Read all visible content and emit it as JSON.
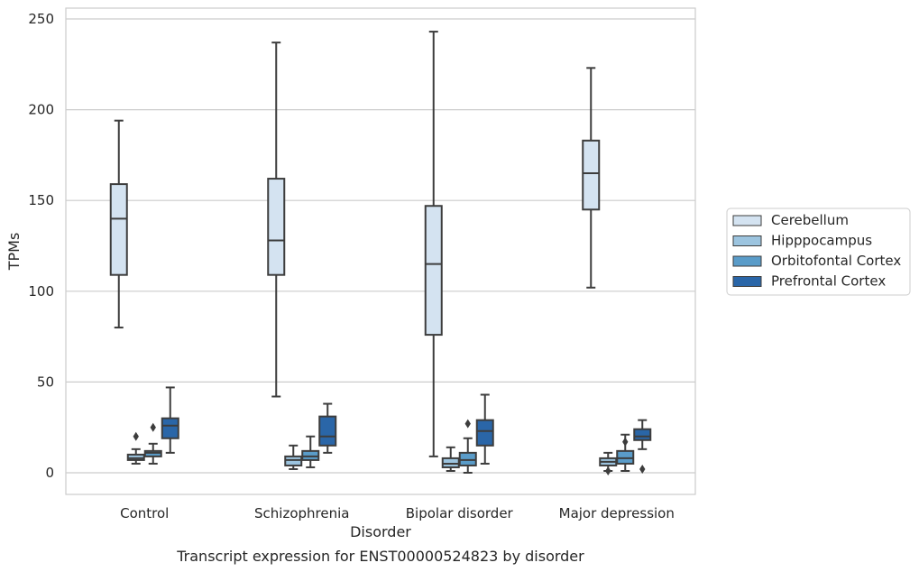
{
  "chart_data": {
    "type": "box",
    "xlabel": "Disorder",
    "ylabel": "TPMs",
    "caption": "Transcript expression for ENST00000524823 by disorder",
    "ylim": [
      -12,
      257
    ],
    "yticks": [
      0,
      50,
      100,
      150,
      200,
      250
    ],
    "grid": "horizontal",
    "legend_position": "right",
    "categories": [
      "Control",
      "Schizophrenia",
      "Bipolar disorder",
      "Major depression"
    ],
    "series": [
      {
        "name": "Cerebellum",
        "color": "#d4e3f1",
        "boxes": [
          {
            "whisker_low": 80,
            "q1": 109,
            "median": 140,
            "q3": 159,
            "whisker_high": 194,
            "outliers": []
          },
          {
            "whisker_low": 42,
            "q1": 109,
            "median": 128,
            "q3": 162,
            "whisker_high": 237,
            "outliers": []
          },
          {
            "whisker_low": 9,
            "q1": 76,
            "median": 115,
            "q3": 147,
            "whisker_high": 243,
            "outliers": []
          },
          {
            "whisker_low": 102,
            "q1": 145,
            "median": 165,
            "q3": 183,
            "whisker_high": 223,
            "outliers": []
          }
        ]
      },
      {
        "name": "Hipppocampus",
        "color": "#9cc4df",
        "boxes": [
          {
            "whisker_low": 5,
            "q1": 7,
            "median": 8,
            "q3": 10,
            "whisker_high": 13,
            "outliers": [
              20
            ]
          },
          {
            "whisker_low": 2,
            "q1": 4,
            "median": 7,
            "q3": 9,
            "whisker_high": 15,
            "outliers": []
          },
          {
            "whisker_low": 1,
            "q1": 3,
            "median": 5,
            "q3": 8,
            "whisker_high": 14,
            "outliers": []
          },
          {
            "whisker_low": 1,
            "q1": 4,
            "median": 6,
            "q3": 8,
            "whisker_high": 11,
            "outliers": [
              1
            ]
          }
        ]
      },
      {
        "name": "Orbitofontal Cortex",
        "color": "#5a9cc9",
        "boxes": [
          {
            "whisker_low": 5,
            "q1": 9,
            "median": 11,
            "q3": 12,
            "whisker_high": 16,
            "outliers": [
              25
            ]
          },
          {
            "whisker_low": 3,
            "q1": 7,
            "median": 9,
            "q3": 12,
            "whisker_high": 20,
            "outliers": []
          },
          {
            "whisker_low": 0,
            "q1": 4,
            "median": 7,
            "q3": 11,
            "whisker_high": 19,
            "outliers": [
              27
            ]
          },
          {
            "whisker_low": 1,
            "q1": 5,
            "median": 8,
            "q3": 12,
            "whisker_high": 21,
            "outliers": [
              17
            ]
          }
        ]
      },
      {
        "name": "Prefrontal Cortex",
        "color": "#2a66a8",
        "boxes": [
          {
            "whisker_low": 11,
            "q1": 19,
            "median": 26,
            "q3": 30,
            "whisker_high": 47,
            "outliers": []
          },
          {
            "whisker_low": 11,
            "q1": 15,
            "median": 20,
            "q3": 31,
            "whisker_high": 38,
            "outliers": []
          },
          {
            "whisker_low": 5,
            "q1": 15,
            "median": 23,
            "q3": 29,
            "whisker_high": 43,
            "outliers": []
          },
          {
            "whisker_low": 13,
            "q1": 18,
            "median": 20,
            "q3": 24,
            "whisker_high": 29,
            "outliers": [
              2
            ]
          }
        ]
      }
    ]
  }
}
